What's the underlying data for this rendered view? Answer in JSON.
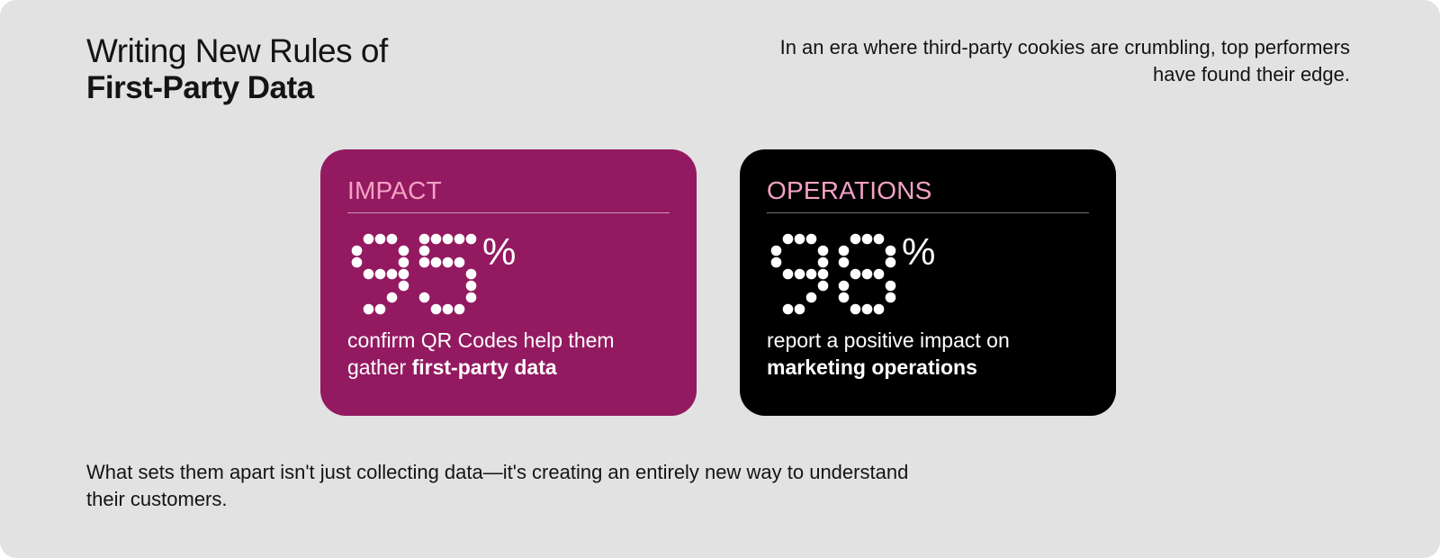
{
  "header": {
    "title_line1": "Writing New Rules of",
    "title_line2": "First-Party Data",
    "intro": "In an era where third-party cookies are crumbling, top performers have found their edge."
  },
  "cards": [
    {
      "label": "IMPACT",
      "value": "95",
      "unit": "%",
      "text": "confirm QR Codes help them gather ",
      "text_bold": "first-party data",
      "background": "#931a61",
      "label_color": "#f5a2c4"
    },
    {
      "label": "OPERATIONS",
      "value": "98",
      "unit": "%",
      "text": "report a positive impact on ",
      "text_bold": "marketing operations",
      "background": "#000000",
      "label_color": "#f5a2c4"
    }
  ],
  "footer": {
    "text": "What sets them apart isn't just collecting data—it's creating an entirely new way to understand their customers."
  }
}
